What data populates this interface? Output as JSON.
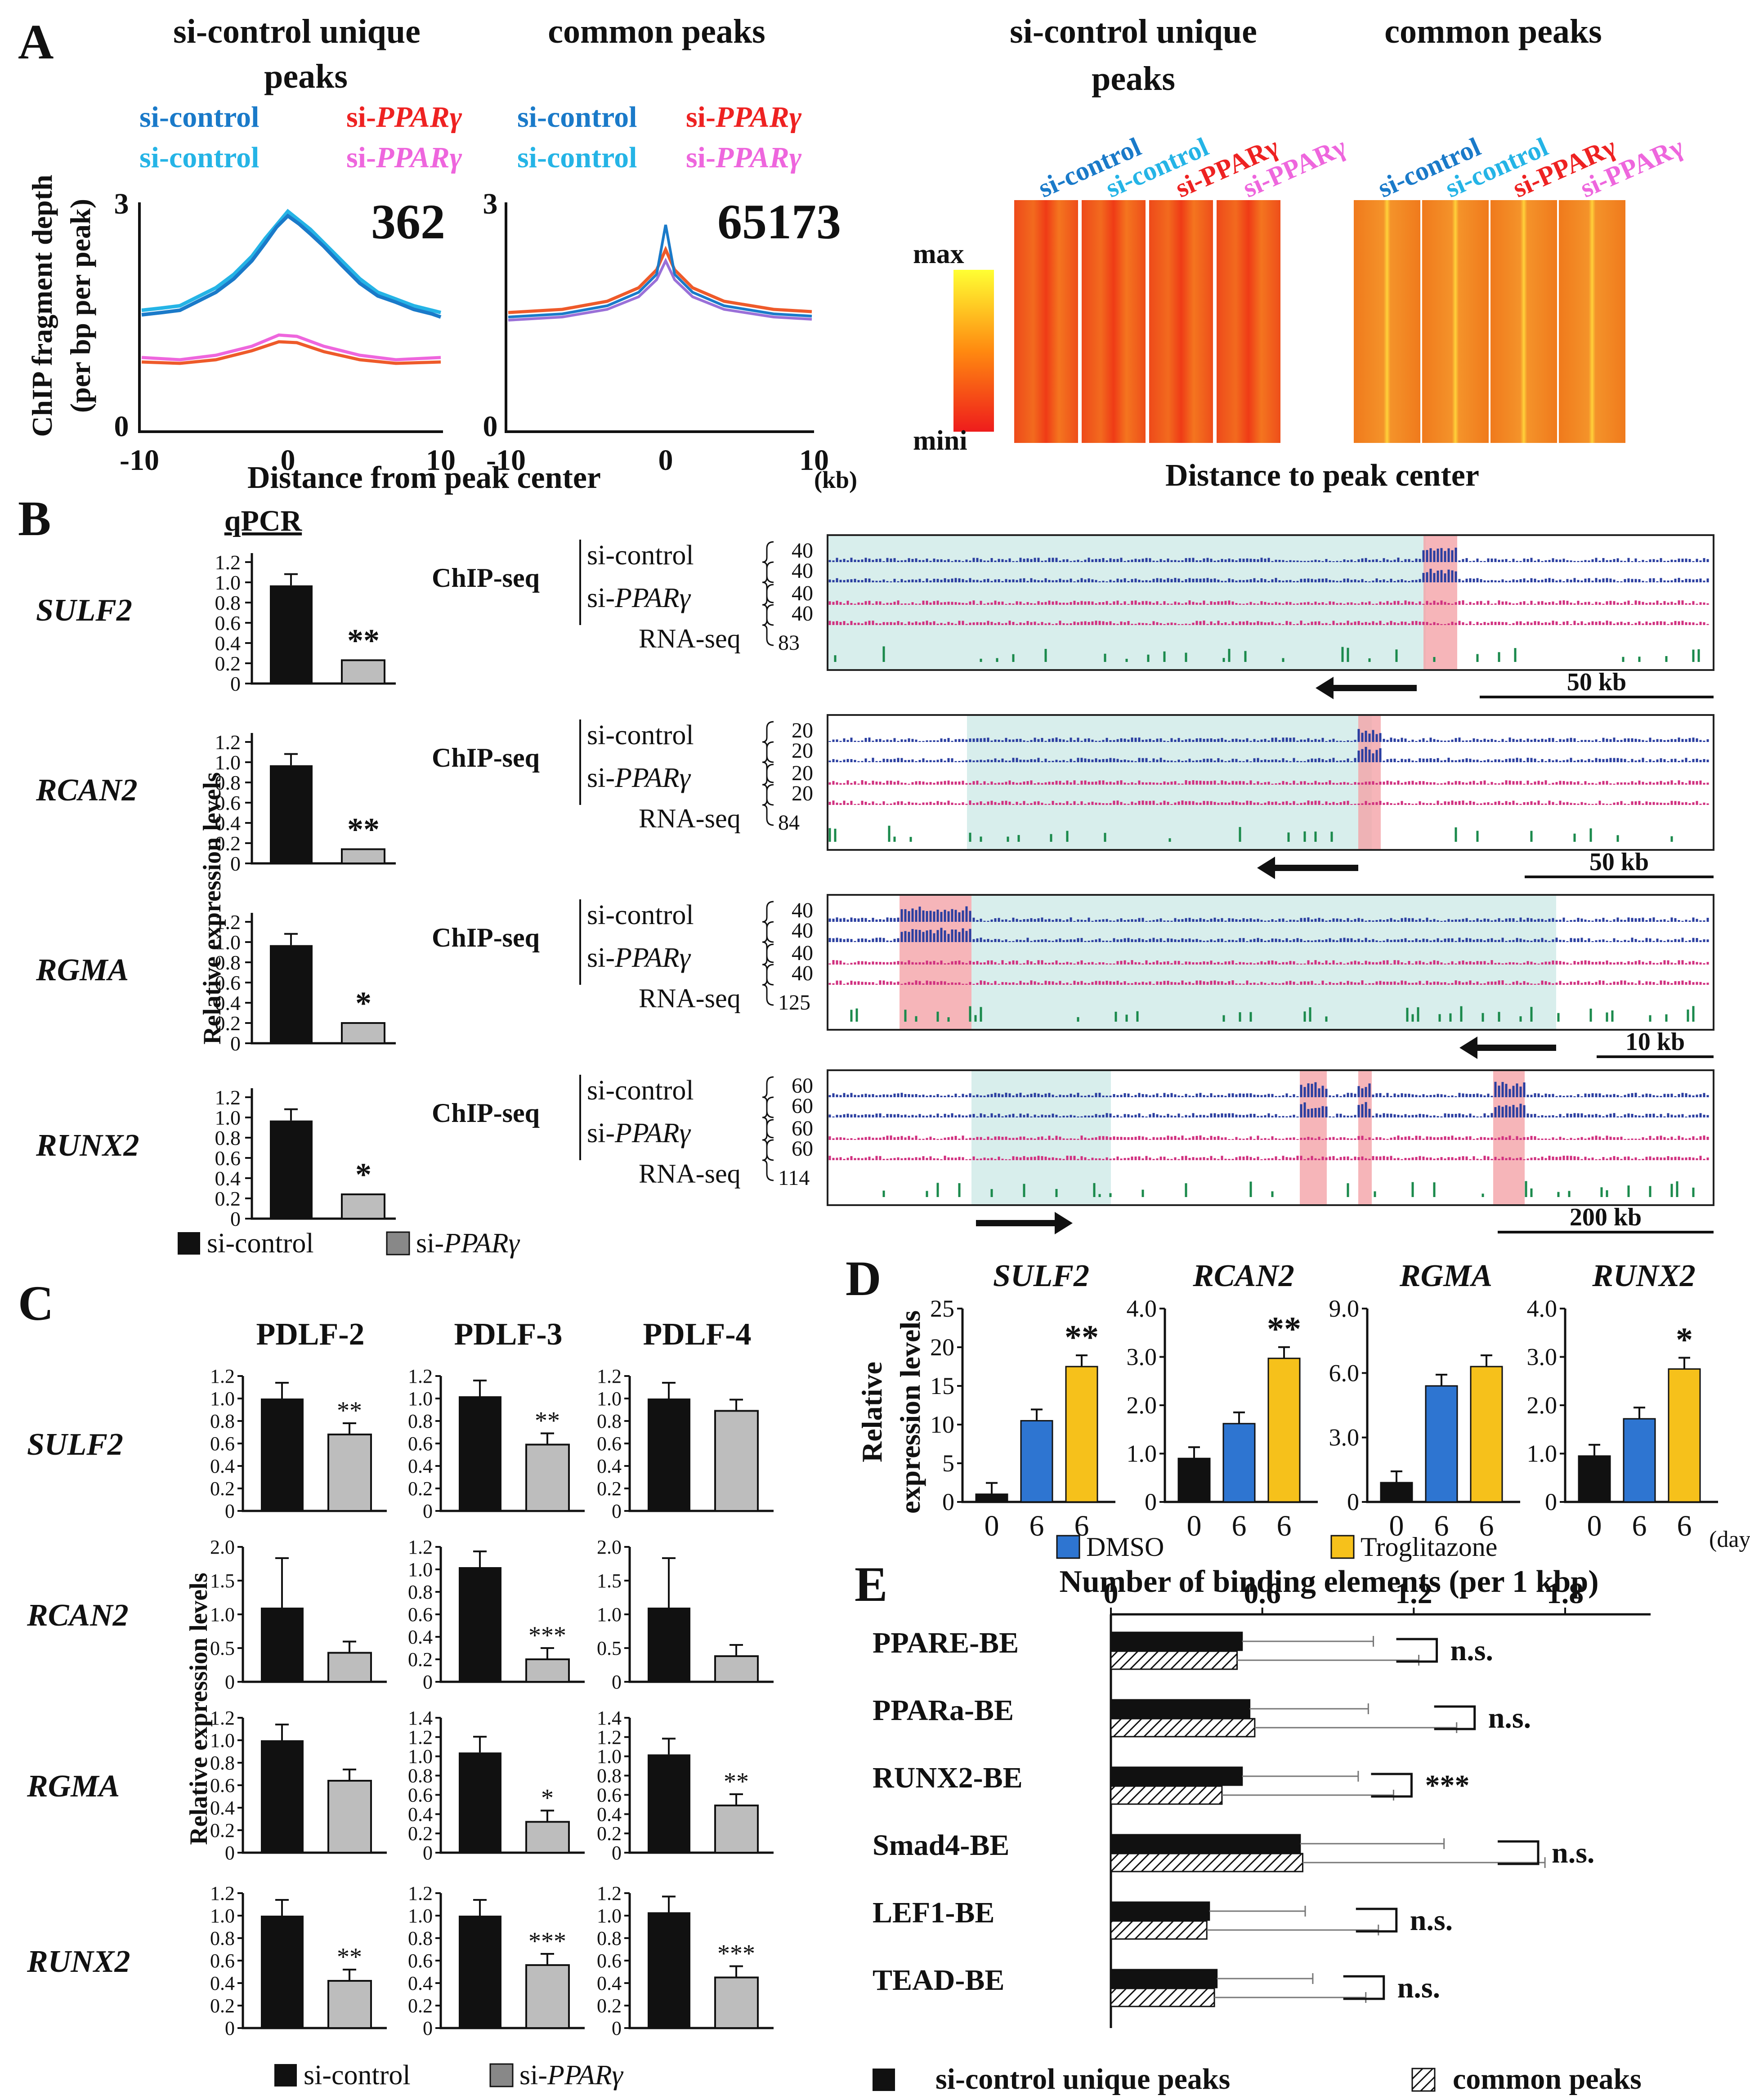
{
  "panel_letters": [
    "A",
    "B",
    "C",
    "D",
    "E"
  ],
  "colors": {
    "si_control_dark": "#1a7ac9",
    "si_control_light": "#25b4e6",
    "si_ppar_red": "#ee2222",
    "si_ppar_pink": "#ee66dd",
    "black_bar": "#111111",
    "gray_bar": "#bdbdbd",
    "dmso": "#2e75d1",
    "troglitazone": "#f6c11b",
    "chip_blue": "#2a3ea0",
    "chip_pink": "#d0307f",
    "rna_green": "#1b8a4c",
    "highlight_red": "#f4a3a8",
    "highlight_cyan": "#d8eeec"
  },
  "panelA": {
    "profile_titles": [
      "si-control unique",
      "peaks",
      "common peaks"
    ],
    "legend": {
      "c1": "si-control",
      "c2": "si-control",
      "p1_prefix": "si-",
      "p1_gene": "PPARγ",
      "p2_prefix": "si-",
      "p2_gene": "PPARγ"
    },
    "ylabel_line1": "ChIP fragment depth",
    "ylabel_line2": "(per bp per peak)",
    "ytick_top": "3",
    "ytick_bottom": "0",
    "xticks_left": [
      "-10",
      "0",
      "10"
    ],
    "xticks_right": [
      "-10",
      "0",
      "10"
    ],
    "count_unique": "362",
    "count_common": "65173",
    "xlabel": "Distance from peak center",
    "xunit": "(kb)",
    "heatmap_titles": [
      "si-control unique",
      "peaks",
      "common peaks"
    ],
    "heatmap_cols": [
      "si-control",
      "si-control",
      "si-PPARγ",
      "si-PPARγ"
    ],
    "scale_max": "max",
    "scale_min": "mini",
    "heatmap_xlabel": "Distance to peak center"
  },
  "panelB": {
    "qpcr_label": "qPCR",
    "ylabel": "Relative expression levels",
    "yticks": [
      "1.2",
      "1.0",
      "0.8",
      "0.6",
      "0.4",
      "0.2",
      "0"
    ],
    "genes": [
      {
        "name": "SULF2",
        "control": 0.97,
        "ppar": 0.23,
        "sig": "**",
        "chip_scales": [
          "40",
          "40",
          "40",
          "40"
        ],
        "rna_scale": "83",
        "scale_bar": "50 kb"
      },
      {
        "name": "RCAN2",
        "control": 0.97,
        "ppar": 0.14,
        "sig": "**",
        "chip_scales": [
          "20",
          "20",
          "20",
          "20"
        ],
        "rna_scale": "84",
        "scale_bar": "50 kb"
      },
      {
        "name": "RGMA",
        "control": 0.97,
        "ppar": 0.2,
        "sig": "*",
        "chip_scales": [
          "40",
          "40",
          "40",
          "40"
        ],
        "rna_scale": "125",
        "scale_bar": "10 kb"
      },
      {
        "name": "RUNX2",
        "control": 0.97,
        "ppar": 0.24,
        "sig": "*",
        "chip_scales": [
          "60",
          "60",
          "60",
          "60"
        ],
        "rna_scale": "114",
        "scale_bar": "200 kb"
      }
    ],
    "chip_label": "ChIP-seq",
    "track_control": "si-control",
    "track_ppar_prefix": "si-",
    "track_ppar_gene": "PPARγ",
    "rna_label": "RNA-seq",
    "legend_control": "si-control",
    "legend_ppar_prefix": "si-",
    "legend_ppar_gene": "PPARγ"
  },
  "panelC": {
    "columns": [
      "PDLF-2",
      "PDLF-3",
      "PDLF-4"
    ],
    "ylabel": "Relative expression levels",
    "rows": [
      {
        "gene": "SULF2",
        "yticks": [
          "1.2",
          "1.0",
          "0.8",
          "0.6",
          "0.4",
          "0.2",
          "0"
        ],
        "ymax": 1.2,
        "values": [
          [
            1.0,
            0.68,
            "**"
          ],
          [
            1.02,
            0.59,
            "**"
          ],
          [
            1.0,
            0.89,
            ""
          ]
        ]
      },
      {
        "gene": "RCAN2",
        "yticks_alt": [
          "2.0",
          "1.5",
          "1.0",
          "0.5",
          "0"
        ],
        "yticks": [
          "1.2",
          "1.0",
          "0.8",
          "0.6",
          "0.4",
          "0.2",
          "0"
        ],
        "values": [
          [
            1.1,
            0.43,
            "",
            2.0
          ],
          [
            1.02,
            0.2,
            "***",
            1.2
          ],
          [
            1.1,
            0.38,
            "",
            2.0
          ]
        ]
      },
      {
        "gene": "RGMA",
        "yticks_alt": [
          "1.2",
          "1.0",
          "0.8",
          "0.6",
          "0.4",
          "0.2",
          "0"
        ],
        "yticks": [
          "1.4",
          "1.2",
          "1.0",
          "0.8",
          "0.6",
          "0.4",
          "0.2",
          "0"
        ],
        "values": [
          [
            1.0,
            0.64,
            "",
            1.2
          ],
          [
            1.04,
            0.32,
            "*",
            1.4
          ],
          [
            1.02,
            0.49,
            "**",
            1.4
          ]
        ]
      },
      {
        "gene": "RUNX2",
        "yticks": [
          "1.2",
          "1.0",
          "0.8",
          "0.6",
          "0.4",
          "0.2",
          "0"
        ],
        "ymax": 1.2,
        "values": [
          [
            1.0,
            0.42,
            "**"
          ],
          [
            1.0,
            0.56,
            "***"
          ],
          [
            1.03,
            0.45,
            "***"
          ]
        ]
      }
    ],
    "legend_control": "si-control",
    "legend_ppar_prefix": "si-",
    "legend_ppar_gene": "PPARγ"
  },
  "panelD": {
    "ylabel_line1": "Relative",
    "ylabel_line2": "expression levels",
    "xticks": [
      "0",
      "6",
      "6"
    ],
    "xunit": "(days)",
    "legend_dmso": "DMSO",
    "legend_trog": "Troglitazone",
    "charts": [
      {
        "gene": "SULF2",
        "yticks": [
          "25",
          "20",
          "15",
          "10",
          "5",
          "0"
        ],
        "ymax": 25,
        "values": [
          1.0,
          10.5,
          17.5
        ],
        "sig": "**"
      },
      {
        "gene": "RCAN2",
        "yticks": [
          "4.0",
          "3.0",
          "2.0",
          "1.0",
          "0"
        ],
        "ymax": 4.0,
        "values": [
          0.9,
          1.62,
          2.97
        ],
        "sig": "**"
      },
      {
        "gene": "RGMA",
        "yticks": [
          "9.0",
          "6.0",
          "3.0",
          "0"
        ],
        "ymax": 9.0,
        "values": [
          0.9,
          5.4,
          6.3
        ],
        "sig": ""
      },
      {
        "gene": "RUNX2",
        "yticks": [
          "4.0",
          "3.0",
          "2.0",
          "1.0",
          "0"
        ],
        "ymax": 4.0,
        "values": [
          0.95,
          1.72,
          2.75
        ],
        "sig": "*"
      }
    ]
  },
  "panelE": {
    "title": "Number of binding elements (per 1 kbp)",
    "xticks": [
      "0",
      "0.6",
      "1.2",
      "1.8"
    ],
    "legend_unique": "si-control unique peaks",
    "legend_common": "common peaks",
    "chart_data": {
      "type": "bar",
      "orientation": "horizontal",
      "categories": [
        "PPARE-BE",
        "PPARa-BE",
        "RUNX2-BE",
        "Smad4-BE",
        "LEF1-BE",
        "TEAD-BE"
      ],
      "series": [
        {
          "name": "si-control unique peaks",
          "values": [
            0.52,
            0.55,
            0.52,
            0.75,
            0.39,
            0.42
          ],
          "error": [
            0.52,
            0.47,
            0.46,
            0.57,
            0.38,
            0.38
          ]
        },
        {
          "name": "common peaks",
          "values": [
            0.5,
            0.57,
            0.44,
            0.76,
            0.38,
            0.41
          ],
          "error": [
            0.72,
            0.8,
            0.68,
            0.96,
            0.68,
            0.6
          ]
        }
      ],
      "significance": [
        "n.s.",
        "n.s.",
        "***",
        "n.s.",
        "n.s.",
        "n.s."
      ],
      "xlim": [
        0,
        2.1
      ]
    }
  }
}
